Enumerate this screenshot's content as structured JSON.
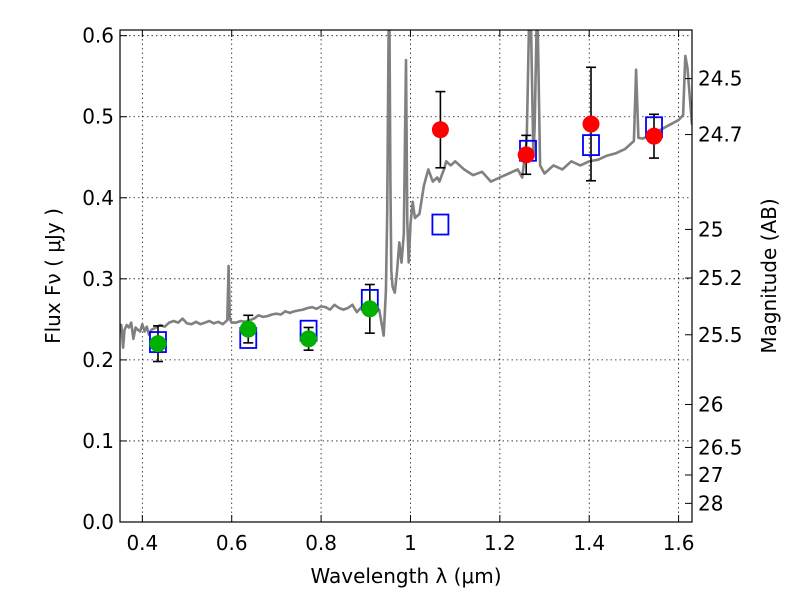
{
  "chart_data": {
    "type": "scatter",
    "xlabel": "Wavelength  λ (μm)",
    "ylabel": "Flux  Fν  ( μJy )",
    "y2label": "Magnitude (AB)",
    "xlim": [
      0.35,
      1.63
    ],
    "ylim": [
      0.0,
      0.607
    ],
    "grid": true,
    "x_ticks": [
      0.4,
      0.6,
      0.8,
      1.0,
      1.2,
      1.4,
      1.6
    ],
    "x_tick_labels": [
      "0.4",
      "0.6",
      "0.8",
      "1",
      "1.2",
      "1.4",
      "1.6"
    ],
    "y_ticks": [
      0.0,
      0.1,
      0.2,
      0.3,
      0.4,
      0.5,
      0.6
    ],
    "y_tick_labels": [
      "0.0",
      "0.1",
      "0.2",
      "0.3",
      "0.4",
      "0.5",
      "0.6"
    ],
    "y2_ticks": [
      {
        "flux": 0.547,
        "label": "24.5"
      },
      {
        "flux": 0.478,
        "label": "24.7"
      },
      {
        "flux": 0.361,
        "label": "25"
      },
      {
        "flux": 0.301,
        "label": "25.2"
      },
      {
        "flux": 0.231,
        "label": "25.5"
      },
      {
        "flux": 0.145,
        "label": "26"
      },
      {
        "flux": 0.092,
        "label": "26.5"
      },
      {
        "flux": 0.058,
        "label": "27"
      },
      {
        "flux": 0.023,
        "label": "28"
      }
    ],
    "colors": {
      "spectrum": "#808080",
      "model_box": "#0000ff",
      "green_points": "#00b000",
      "red_points": "#ff0000",
      "error_bars": "#000000"
    },
    "series": [
      {
        "kind": "spectrum_line",
        "x": [
          0.35,
          0.353,
          0.357,
          0.36,
          0.365,
          0.37,
          0.375,
          0.38,
          0.385,
          0.39,
          0.395,
          0.4,
          0.405,
          0.41,
          0.415,
          0.42,
          0.43,
          0.44,
          0.45,
          0.46,
          0.47,
          0.48,
          0.49,
          0.5,
          0.51,
          0.52,
          0.53,
          0.54,
          0.55,
          0.56,
          0.57,
          0.58,
          0.59,
          0.593,
          0.596,
          0.6,
          0.61,
          0.62,
          0.63,
          0.64,
          0.65,
          0.66,
          0.67,
          0.68,
          0.69,
          0.7,
          0.71,
          0.72,
          0.73,
          0.74,
          0.75,
          0.76,
          0.77,
          0.78,
          0.79,
          0.8,
          0.81,
          0.82,
          0.83,
          0.84,
          0.85,
          0.86,
          0.87,
          0.88,
          0.89,
          0.9,
          0.91,
          0.92,
          0.93,
          0.94,
          0.945,
          0.948,
          0.951,
          0.953,
          0.955,
          0.957,
          0.96,
          0.965,
          0.97,
          0.975,
          0.98,
          0.985,
          0.99,
          0.993,
          0.996,
          1.0,
          1.005,
          1.01,
          1.02,
          1.03,
          1.04,
          1.05,
          1.06,
          1.065,
          1.07,
          1.075,
          1.08,
          1.09,
          1.1,
          1.12,
          1.14,
          1.16,
          1.18,
          1.2,
          1.22,
          1.24,
          1.25,
          1.26,
          1.265,
          1.27,
          1.275,
          1.278,
          1.282,
          1.285,
          1.29,
          1.3,
          1.32,
          1.34,
          1.36,
          1.38,
          1.4,
          1.42,
          1.44,
          1.46,
          1.48,
          1.5,
          1.505,
          1.51,
          1.52,
          1.54,
          1.56,
          1.58,
          1.6,
          1.61,
          1.615,
          1.62,
          1.63
        ],
        "y": [
          0.238,
          0.243,
          0.215,
          0.237,
          0.243,
          0.24,
          0.246,
          0.226,
          0.24,
          0.237,
          0.235,
          0.244,
          0.235,
          0.241,
          0.231,
          0.237,
          0.24,
          0.243,
          0.241,
          0.246,
          0.248,
          0.246,
          0.251,
          0.245,
          0.244,
          0.247,
          0.244,
          0.246,
          0.248,
          0.245,
          0.247,
          0.244,
          0.249,
          0.316,
          0.25,
          0.246,
          0.246,
          0.248,
          0.247,
          0.249,
          0.251,
          0.255,
          0.253,
          0.254,
          0.256,
          0.257,
          0.256,
          0.26,
          0.258,
          0.26,
          0.261,
          0.262,
          0.264,
          0.265,
          0.263,
          0.266,
          0.265,
          0.262,
          0.268,
          0.264,
          0.262,
          0.264,
          0.268,
          0.259,
          0.265,
          0.262,
          0.264,
          0.258,
          0.262,
          0.23,
          0.285,
          0.38,
          0.607,
          0.607,
          0.42,
          0.31,
          0.29,
          0.283,
          0.31,
          0.345,
          0.32,
          0.355,
          0.57,
          0.37,
          0.32,
          0.368,
          0.395,
          0.375,
          0.38,
          0.415,
          0.435,
          0.42,
          0.425,
          0.42,
          0.428,
          0.435,
          0.445,
          0.44,
          0.445,
          0.435,
          0.428,
          0.432,
          0.42,
          0.425,
          0.43,
          0.435,
          0.425,
          0.47,
          0.607,
          0.607,
          0.45,
          0.49,
          0.607,
          0.607,
          0.44,
          0.43,
          0.44,
          0.435,
          0.445,
          0.44,
          0.445,
          0.447,
          0.452,
          0.455,
          0.46,
          0.47,
          0.558,
          0.474,
          0.473,
          0.478,
          0.484,
          0.49,
          0.496,
          0.502,
          0.575,
          0.56,
          0.49
        ]
      },
      {
        "kind": "model_boxes",
        "x": [
          0.435,
          0.637,
          0.772,
          0.909,
          1.067,
          1.263,
          1.404,
          1.545
        ],
        "y": [
          0.222,
          0.227,
          0.236,
          0.274,
          0.367,
          0.458,
          0.465,
          0.487
        ]
      },
      {
        "kind": "green_points",
        "x": [
          0.435,
          0.637,
          0.772,
          0.909
        ],
        "y": [
          0.22,
          0.238,
          0.226,
          0.263
        ],
        "yerr": [
          0.022,
          0.017,
          0.014,
          0.03
        ]
      },
      {
        "kind": "red_points",
        "x": [
          1.067,
          1.259,
          1.404,
          1.545
        ],
        "y": [
          0.484,
          0.453,
          0.491,
          0.476
        ],
        "yerr": [
          0.047,
          0.024,
          0.07,
          0.027
        ]
      }
    ]
  }
}
